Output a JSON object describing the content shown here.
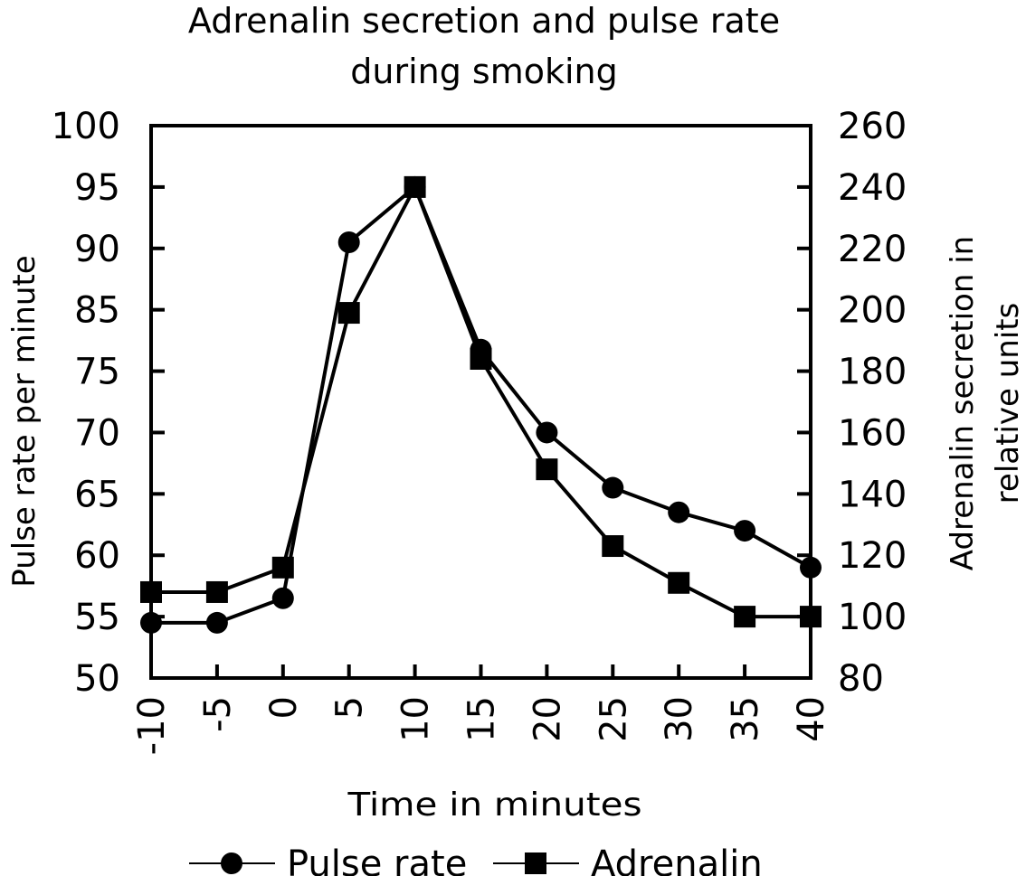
{
  "chart_data": {
    "type": "line",
    "title": "Adrenalin secretion and pulse rate during smoking",
    "title_lines": [
      "Adrenalin secretion and pulse rate",
      "during smoking"
    ],
    "xlabel": "Time in minutes",
    "ylabel": "Pulse rate per minute",
    "y2label": "Adrenalin secretion in relative units",
    "y2label_lines": [
      "Adrenalin secretion in",
      "relative units"
    ],
    "x": [
      -10,
      -5,
      0,
      5,
      10,
      15,
      20,
      25,
      30,
      35,
      40
    ],
    "x_tick_labels": [
      "-10",
      "-5",
      "0",
      "5",
      "10",
      "15",
      "20",
      "25",
      "30",
      "35",
      "40"
    ],
    "y_tick_labels": [
      "50",
      "55",
      "60",
      "65",
      "70",
      "75",
      "85",
      "90",
      "95",
      "100"
    ],
    "y2_tick_labels": [
      "80",
      "100",
      "120",
      "140",
      "160",
      "180",
      "200",
      "220",
      "240",
      "260"
    ],
    "ylim": [
      50,
      100
    ],
    "y2lim": [
      80,
      260
    ],
    "grid": false,
    "legend_position": "bottom",
    "series": [
      {
        "name": "Pulse rate",
        "axis": "left",
        "marker": "circle",
        "values": [
          54.5,
          54.5,
          56.5,
          90.5,
          95,
          78.5,
          70,
          65.5,
          63.5,
          62,
          59
        ]
      },
      {
        "name": "Adrenalin",
        "axis": "right",
        "marker": "square",
        "values": [
          108,
          108,
          116,
          199,
          240,
          184,
          148,
          123,
          111,
          100,
          100
        ]
      }
    ]
  }
}
